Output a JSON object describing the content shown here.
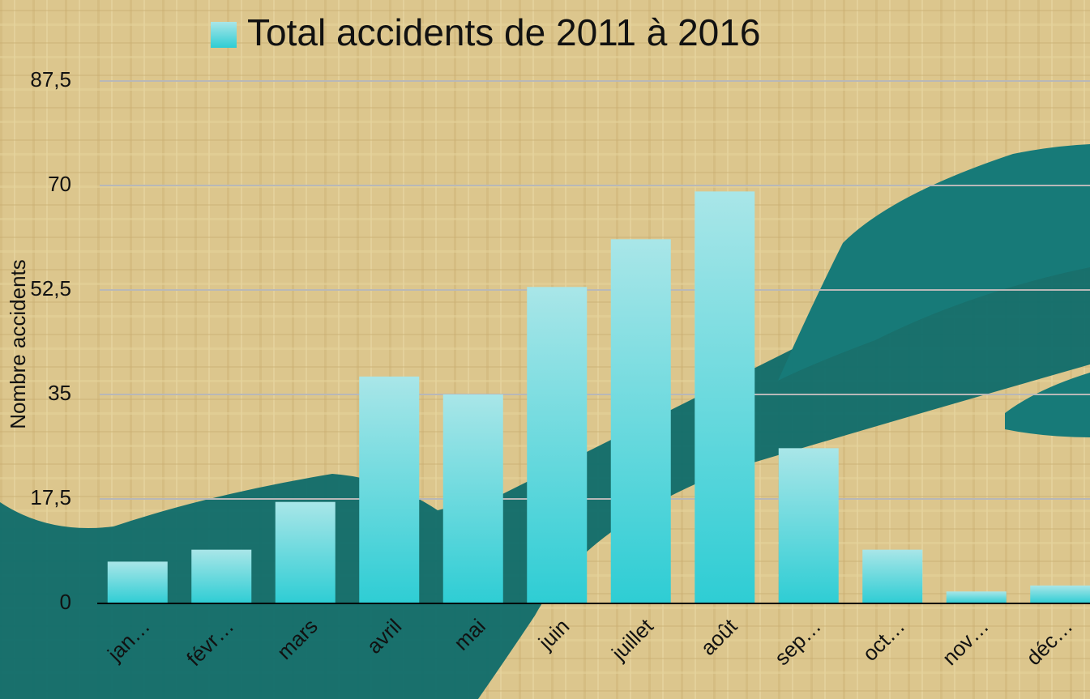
{
  "chart_data": {
    "type": "bar",
    "y_label": "Nombre accidents",
    "categories": [
      "jan…",
      "févr…",
      "mars",
      "avril",
      "mai",
      "juin",
      "juillet",
      "août",
      "sep…",
      "oct…",
      "nov…",
      "déc…"
    ],
    "series": [
      {
        "name": "Total accidents de 2011 à 2016",
        "color": "#2ecdd4",
        "values": [
          7,
          9,
          17,
          38,
          35,
          53,
          61,
          69,
          26,
          9,
          2,
          3
        ]
      }
    ],
    "ylim": [
      0,
      87.5
    ],
    "yticks": [
      0,
      {
        "value": 17.5,
        "label": "17,5"
      },
      35,
      {
        "value": 52.5,
        "label": "52,5"
      },
      70,
      {
        "value": 87.5,
        "label": "87,5"
      }
    ],
    "grid": true,
    "legend": "top"
  }
}
